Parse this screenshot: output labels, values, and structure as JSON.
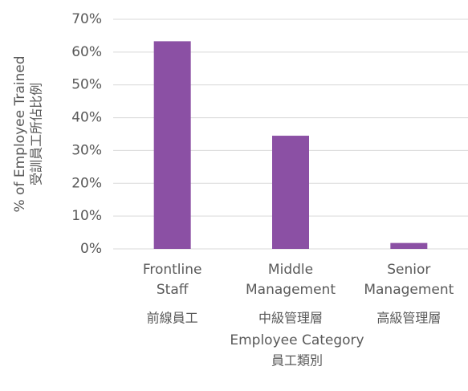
{
  "chart_data": {
    "type": "bar",
    "x_label": [
      "Employee Category",
      "員工類別"
    ],
    "y_label": [
      "% of Employee Trained",
      "受訓員工所佔比例"
    ],
    "categories": [
      [
        "Frontline",
        "Staff",
        "前線員工"
      ],
      [
        "Middle",
        "Management",
        "中級管理層"
      ],
      [
        "Senior",
        "Management",
        "高級管理層"
      ]
    ],
    "values": [
      63.3,
      34.5,
      1.8
    ],
    "color": "#8b50a4",
    "ylim": [
      0,
      70
    ],
    "yticks": [
      {
        "value": 0,
        "label": "0%"
      },
      {
        "value": 10,
        "label": "10%"
      },
      {
        "value": 20,
        "label": "20%"
      },
      {
        "value": 30,
        "label": "30%"
      },
      {
        "value": 40,
        "label": "40%"
      },
      {
        "value": 50,
        "label": "50%"
      },
      {
        "value": 60,
        "label": "60%"
      },
      {
        "value": 70,
        "label": "70%"
      }
    ],
    "grid": true
  }
}
